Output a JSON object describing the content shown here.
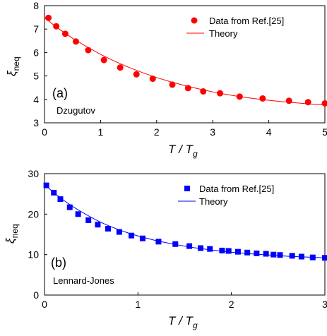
{
  "chart_data": [
    {
      "type": "scatter",
      "panel_label": "(a)",
      "system_label": "Dzugutov",
      "ylabel": {
        "symbol": "ξ",
        "sub": "neq"
      },
      "xlabel": {
        "main": "T / T",
        "sub": "g"
      },
      "xlim": [
        0,
        5
      ],
      "ylim": [
        3,
        8
      ],
      "xticks": [
        "0",
        "1",
        "2",
        "3",
        "4",
        "5"
      ],
      "yticks": [
        "3",
        "4",
        "5",
        "6",
        "7",
        "8"
      ],
      "color": "#ff0000",
      "marker": "circle",
      "legend": [
        "Data from Ref.[25]",
        "Theory"
      ],
      "legend_position": "top-right",
      "series": [
        {
          "name": "Data from Ref.[25]",
          "x": [
            0.07,
            0.21,
            0.37,
            0.56,
            0.78,
            1.06,
            1.35,
            1.64,
            1.93,
            2.28,
            2.56,
            2.83,
            3.13,
            3.48,
            3.89,
            4.36,
            4.7,
            5.0
          ],
          "y": [
            7.48,
            7.12,
            6.8,
            6.47,
            6.1,
            5.68,
            5.36,
            5.07,
            4.88,
            4.63,
            4.48,
            4.34,
            4.26,
            4.12,
            4.04,
            3.94,
            3.88,
            3.83
          ]
        },
        {
          "name": "Theory",
          "x": [
            0.0,
            0.25,
            0.5,
            0.75,
            1.0,
            1.25,
            1.5,
            1.75,
            2.0,
            2.25,
            2.5,
            2.75,
            3.0,
            3.25,
            3.5,
            3.75,
            4.0,
            4.25,
            4.5,
            4.75,
            5.0
          ],
          "y": [
            7.48,
            7.02,
            6.61,
            6.25,
            5.92,
            5.63,
            5.37,
            5.14,
            4.93,
            4.75,
            4.59,
            4.45,
            4.32,
            4.21,
            4.11,
            4.03,
            3.96,
            3.9,
            3.85,
            3.8,
            3.76
          ]
        }
      ]
    },
    {
      "type": "scatter",
      "panel_label": "(b)",
      "system_label": "Lennard-Jones",
      "ylabel": {
        "symbol": "ξ",
        "sub": "neq"
      },
      "xlabel": {
        "main": "T / T",
        "sub": "g"
      },
      "xlim": [
        0,
        3
      ],
      "ylim": [
        0,
        30
      ],
      "xticks": [
        "0",
        "1",
        "2",
        "3"
      ],
      "yticks": [
        "0",
        "10",
        "20",
        "30"
      ],
      "color": "#0000ff",
      "marker": "square",
      "legend": [
        "Data from Ref.[25]",
        "Theory"
      ],
      "legend_position": "top-right",
      "series": [
        {
          "name": "Data from Ref.[25]",
          "x": [
            0.02,
            0.1,
            0.17,
            0.27,
            0.36,
            0.47,
            0.57,
            0.68,
            0.8,
            0.93,
            1.05,
            1.22,
            1.4,
            1.55,
            1.67,
            1.77,
            1.9,
            1.97,
            2.07,
            2.17,
            2.27,
            2.37,
            2.45,
            2.52,
            2.65,
            2.75,
            2.87,
            3.0
          ],
          "y": [
            27.1,
            25.3,
            23.7,
            21.7,
            20.0,
            18.5,
            17.4,
            16.4,
            15.6,
            14.7,
            14.0,
            13.2,
            12.6,
            12.1,
            11.6,
            11.4,
            11.0,
            10.9,
            10.7,
            10.5,
            10.3,
            10.2,
            10.0,
            9.9,
            9.7,
            9.5,
            9.3,
            9.2
          ]
        },
        {
          "name": "Theory",
          "x": [
            0.0,
            0.1,
            0.2,
            0.3,
            0.4,
            0.5,
            0.6,
            0.7,
            0.8,
            0.9,
            1.0,
            1.2,
            1.4,
            1.6,
            1.8,
            2.0,
            2.2,
            2.4,
            2.6,
            2.8,
            3.0
          ],
          "y": [
            27.3,
            25.3,
            23.5,
            21.9,
            20.5,
            19.2,
            18.0,
            17.0,
            16.1,
            15.3,
            14.6,
            13.4,
            12.5,
            11.7,
            11.1,
            10.6,
            10.2,
            9.9,
            9.6,
            9.4,
            9.2
          ]
        }
      ]
    }
  ]
}
